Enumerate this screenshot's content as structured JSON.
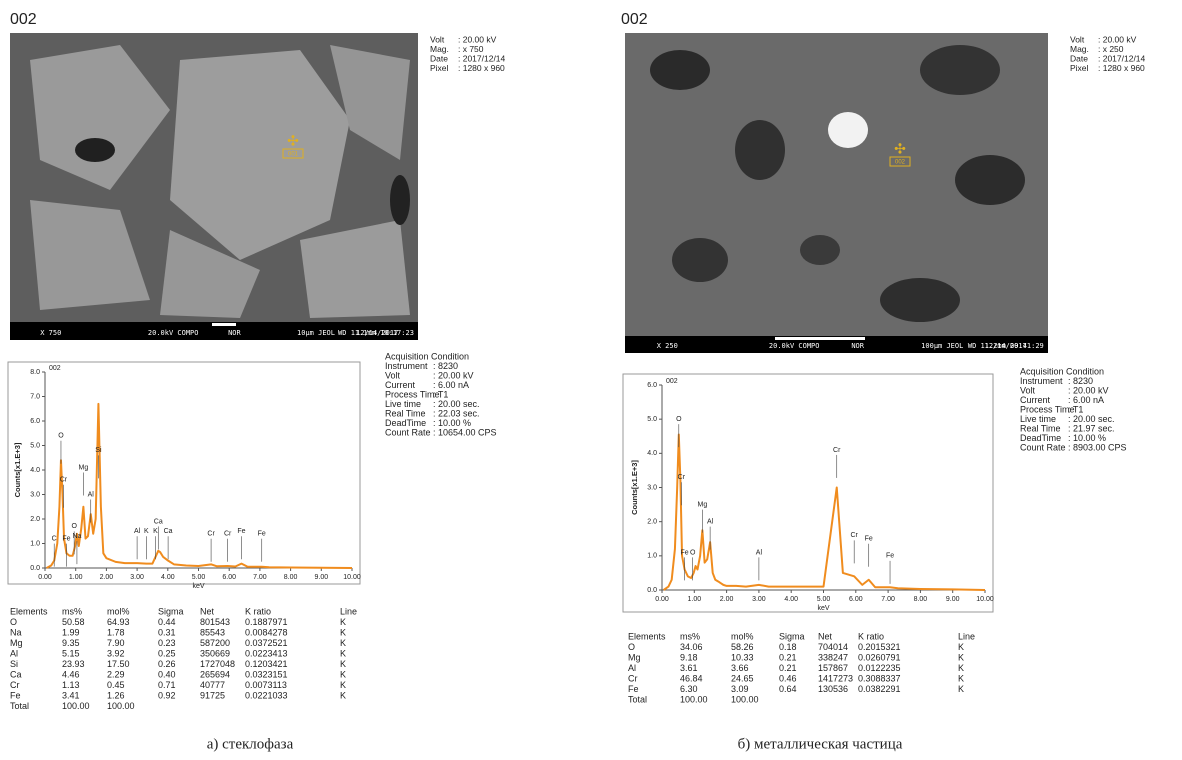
{
  "chart_data": [
    {
      "type": "line",
      "title": "002",
      "x_label": "keV",
      "y_label": "Counts[x1.E+3]",
      "color": "#f08c1e",
      "xlim": [
        0,
        10
      ],
      "ylim": [
        0,
        8
      ],
      "xticks": [
        {
          "value": 0,
          "label": "0.00"
        },
        {
          "value": 1,
          "label": "1.00"
        },
        {
          "value": 2,
          "label": "2.00"
        },
        {
          "value": 3,
          "label": "3.00"
        },
        {
          "value": 4,
          "label": "4.00"
        },
        {
          "value": 5,
          "label": "5.00"
        },
        {
          "value": 6,
          "label": "6.00"
        },
        {
          "value": 7,
          "label": "7.00"
        },
        {
          "value": 8,
          "label": "8.00"
        },
        {
          "value": 9,
          "label": "9.00"
        },
        {
          "value": 10,
          "label": "10.00"
        }
      ],
      "yticks": [
        {
          "value": 0,
          "label": "0.0"
        },
        {
          "value": 1,
          "label": "1.0"
        },
        {
          "value": 2,
          "label": "2.0"
        },
        {
          "value": 3,
          "label": "3.0"
        },
        {
          "value": 4,
          "label": "4.0"
        },
        {
          "value": 5,
          "label": "5.0"
        },
        {
          "value": 6,
          "label": "6.0"
        },
        {
          "value": 7,
          "label": "7.0"
        },
        {
          "value": 8,
          "label": "8.0"
        }
      ],
      "x": [
        0.05,
        0.2,
        0.3,
        0.4,
        0.47,
        0.52,
        0.57,
        0.62,
        0.7,
        0.8,
        0.9,
        0.98,
        1.04,
        1.1,
        1.18,
        1.25,
        1.32,
        1.4,
        1.49,
        1.57,
        1.65,
        1.74,
        1.82,
        1.9,
        2.0,
        2.3,
        2.6,
        3.0,
        3.3,
        3.5,
        3.69,
        3.75,
        3.85,
        4.01,
        4.2,
        4.6,
        5.0,
        5.41,
        5.6,
        5.95,
        6.2,
        6.4,
        6.6,
        7.06,
        7.3,
        8.0,
        9.0,
        10.0
      ],
      "values": [
        0,
        0.1,
        0.3,
        1.0,
        2.5,
        4.4,
        3.0,
        1.2,
        0.6,
        0.5,
        0.5,
        0.9,
        1.4,
        0.9,
        1.6,
        2.5,
        1.2,
        1.3,
        2.2,
        1.4,
        2.0,
        6.7,
        2.5,
        0.6,
        0.4,
        0.25,
        0.2,
        0.2,
        0.18,
        0.18,
        0.7,
        0.65,
        0.45,
        0.3,
        0.15,
        0.1,
        0.08,
        0.15,
        0.07,
        0.08,
        0.06,
        0.18,
        0.05,
        0.05,
        0.03,
        0.02,
        0.01,
        0
      ],
      "peak_labels": [
        {
          "label": "O",
          "x": 0.52,
          "y": 5.4
        },
        {
          "label": "Cr",
          "x": 0.6,
          "y": 3.6
        },
        {
          "label": "C",
          "x": 0.3,
          "y": 1.2
        },
        {
          "label": "Fe",
          "x": 0.7,
          "y": 1.2
        },
        {
          "label": "O",
          "x": 0.95,
          "y": 1.7
        },
        {
          "label": "Na",
          "x": 1.04,
          "y": 1.3
        },
        {
          "label": "Mg",
          "x": 1.25,
          "y": 4.1
        },
        {
          "label": "Al",
          "x": 1.49,
          "y": 3.0
        },
        {
          "label": "Si",
          "x": 1.74,
          "y": 4.8
        },
        {
          "label": "Al",
          "x": 3.0,
          "y": 1.5
        },
        {
          "label": "K",
          "x": 3.3,
          "y": 1.5
        },
        {
          "label": "K",
          "x": 3.6,
          "y": 1.5
        },
        {
          "label": "Ca",
          "x": 3.69,
          "y": 1.9
        },
        {
          "label": "Ca",
          "x": 4.01,
          "y": 1.5
        },
        {
          "label": "Cr",
          "x": 5.41,
          "y": 1.4
        },
        {
          "label": "Cr",
          "x": 5.95,
          "y": 1.4
        },
        {
          "label": "Fe",
          "x": 6.4,
          "y": 1.5
        },
        {
          "label": "Fe",
          "x": 7.06,
          "y": 1.4
        }
      ]
    },
    {
      "type": "line",
      "title": "002",
      "x_label": "keV",
      "y_label": "Counts[x1.E+3]",
      "color": "#f08c1e",
      "xlim": [
        0,
        10
      ],
      "ylim": [
        0,
        6
      ],
      "xticks": [
        {
          "value": 0,
          "label": "0.00"
        },
        {
          "value": 1,
          "label": "1.00"
        },
        {
          "value": 2,
          "label": "2.00"
        },
        {
          "value": 3,
          "label": "3.00"
        },
        {
          "value": 4,
          "label": "4.00"
        },
        {
          "value": 5,
          "label": "5.00"
        },
        {
          "value": 6,
          "label": "6.00"
        },
        {
          "value": 7,
          "label": "7.00"
        },
        {
          "value": 8,
          "label": "8.00"
        },
        {
          "value": 9,
          "label": "9.00"
        },
        {
          "value": 10,
          "label": "10.00"
        }
      ],
      "yticks": [
        {
          "value": 0,
          "label": "0.0"
        },
        {
          "value": 1,
          "label": "1.0"
        },
        {
          "value": 2,
          "label": "2.0"
        },
        {
          "value": 3,
          "label": "3.0"
        },
        {
          "value": 4,
          "label": "4.0"
        },
        {
          "value": 5,
          "label": "5.0"
        },
        {
          "value": 6,
          "label": "6.0"
        }
      ],
      "x": [
        0.05,
        0.2,
        0.3,
        0.4,
        0.47,
        0.52,
        0.57,
        0.62,
        0.7,
        0.8,
        0.9,
        0.98,
        1.04,
        1.1,
        1.18,
        1.25,
        1.32,
        1.4,
        1.49,
        1.57,
        1.65,
        1.74,
        1.82,
        1.9,
        2.0,
        2.3,
        2.6,
        3.0,
        3.3,
        3.5,
        3.69,
        3.75,
        3.85,
        4.01,
        4.2,
        4.6,
        5.0,
        5.41,
        5.6,
        5.95,
        6.2,
        6.4,
        6.6,
        7.06,
        7.3,
        8.0,
        9.0,
        10.0
      ],
      "values": [
        0,
        0.1,
        0.3,
        1.2,
        3.0,
        4.55,
        3.2,
        1.0,
        0.6,
        0.4,
        0.35,
        0.5,
        0.7,
        0.6,
        1.0,
        1.75,
        0.8,
        0.9,
        1.4,
        0.5,
        0.3,
        0.25,
        0.2,
        0.15,
        0.12,
        0.12,
        0.1,
        0.15,
        0.1,
        0.1,
        0.1,
        0.1,
        0.1,
        0.1,
        0.1,
        0.1,
        0.1,
        3.0,
        0.5,
        0.4,
        0.15,
        0.3,
        0.08,
        0.08,
        0.05,
        0.03,
        0.02,
        0
      ],
      "peak_labels": [
        {
          "label": "O",
          "x": 0.52,
          "y": 5.0
        },
        {
          "label": "Cr",
          "x": 0.6,
          "y": 3.3
        },
        {
          "label": "Fe",
          "x": 0.7,
          "y": 1.1
        },
        {
          "label": "O",
          "x": 0.95,
          "y": 1.1
        },
        {
          "label": "Mg",
          "x": 1.25,
          "y": 2.5
        },
        {
          "label": "Al",
          "x": 1.49,
          "y": 2.0
        },
        {
          "label": "Al",
          "x": 3.0,
          "y": 1.1
        },
        {
          "label": "Cr",
          "x": 5.41,
          "y": 4.1
        },
        {
          "label": "Cr",
          "x": 5.95,
          "y": 1.6
        },
        {
          "label": "Fe",
          "x": 6.4,
          "y": 1.5
        },
        {
          "label": "Fe",
          "x": 7.06,
          "y": 1.0
        }
      ]
    }
  ],
  "panels": [
    {
      "label": "002",
      "sem": {
        "marker": "001",
        "bar": [
          "X 750",
          "20.0kV COMPO",
          "NOR",
          "10µm JEOL",
          "12/14/2017",
          "WD 11.1mm 10:17:23"
        ]
      },
      "meta": [
        [
          "Volt",
          ": 20.00 kV"
        ],
        [
          "Mag.",
          ": x 750"
        ],
        [
          "Date",
          ": 2017/12/14"
        ],
        [
          "Pixel",
          ": 1280 x 960"
        ]
      ],
      "acquisition": {
        "title": "Acquisition Condition",
        "rows": [
          [
            "Instrument",
            ": 8230"
          ],
          [
            "Volt",
            ": 20.00 kV"
          ],
          [
            "Current",
            ": 6.00 nA"
          ],
          [
            "Process Time",
            ": T1"
          ],
          [
            "Live time",
            ": 20.00 sec."
          ],
          [
            "Real Time",
            ": 22.03 sec."
          ],
          [
            "DeadTime",
            ": 10.00 %"
          ],
          [
            "Count Rate",
            ": 10654.00 CPS"
          ]
        ]
      },
      "table": {
        "header": [
          "Elements",
          "ms%",
          "mol%",
          "Sigma",
          "Net",
          "K ratio",
          "Line"
        ],
        "rows": [
          [
            "O",
            "50.58",
            "64.93",
            "0.44",
            "801543",
            "0.1887971",
            "K"
          ],
          [
            "Na",
            "1.99",
            "1.78",
            "0.31",
            "85543",
            "0.0084278",
            "K"
          ],
          [
            "Mg",
            "9.35",
            "7.90",
            "0.23",
            "587200",
            "0.0372521",
            "K"
          ],
          [
            "Al",
            "5.15",
            "3.92",
            "0.25",
            "350669",
            "0.0223413",
            "K"
          ],
          [
            "Si",
            "23.93",
            "17.50",
            "0.26",
            "1727048",
            "0.1203421",
            "K"
          ],
          [
            "Ca",
            "4.46",
            "2.29",
            "0.40",
            "265694",
            "0.0323151",
            "K"
          ],
          [
            "Cr",
            "1.13",
            "0.45",
            "0.71",
            "40777",
            "0.0073113",
            "K"
          ],
          [
            "Fe",
            "3.41",
            "1.26",
            "0.92",
            "91725",
            "0.0221033",
            "K"
          ],
          [
            "Total",
            "100.00",
            "100.00"
          ]
        ]
      },
      "caption": "а) стеклофаза"
    },
    {
      "label": "002",
      "sem": {
        "marker": "002",
        "bar": [
          "X 250",
          "20.0kV COMPO",
          "NOR",
          "100µm JEOL",
          "12/14/2017",
          "WD 11.2mm 09:41:29"
        ]
      },
      "meta": [
        [
          "Volt",
          ": 20.00 kV"
        ],
        [
          "Mag.",
          ": x 250"
        ],
        [
          "Date",
          ": 2017/12/14"
        ],
        [
          "Pixel",
          ": 1280 x 960"
        ]
      ],
      "acquisition": {
        "title": "Acquisition Condition",
        "rows": [
          [
            "Instrument",
            ": 8230"
          ],
          [
            "Volt",
            ": 20.00 kV"
          ],
          [
            "Current",
            ": 6.00 nA"
          ],
          [
            "Process Time",
            ": T1"
          ],
          [
            "Live time",
            ": 20.00 sec."
          ],
          [
            "Real Time",
            ": 21.97 sec."
          ],
          [
            "DeadTime",
            ": 10.00 %"
          ],
          [
            "Count Rate",
            ": 8903.00 CPS"
          ]
        ]
      },
      "table": {
        "header": [
          "Elements",
          "ms%",
          "mol%",
          "Sigma",
          "Net",
          "K ratio",
          "Line"
        ],
        "rows": [
          [
            "O",
            "34.06",
            "58.26",
            "0.18",
            "704014",
            "0.2015321",
            "K"
          ],
          [
            "Mg",
            "9.18",
            "10.33",
            "0.21",
            "338247",
            "0.0260791",
            "K"
          ],
          [
            "Al",
            "3.61",
            "3.66",
            "0.21",
            "157867",
            "0.0122235",
            "K"
          ],
          [
            "Cr",
            "46.84",
            "24.65",
            "0.46",
            "1417273",
            "0.3088337",
            "K"
          ],
          [
            "Fe",
            "6.30",
            "3.09",
            "0.64",
            "130536",
            "0.0382291",
            "K"
          ],
          [
            "Total",
            "100.00",
            "100.00"
          ]
        ]
      },
      "caption": "б) металлическая частица"
    }
  ]
}
